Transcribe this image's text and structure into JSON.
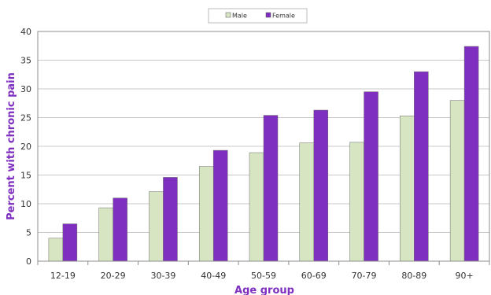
{
  "chart_data": {
    "type": "bar",
    "categories": [
      "12-19",
      "20-29",
      "30-39",
      "40-49",
      "50-59",
      "60-69",
      "70-79",
      "80-89",
      "90+"
    ],
    "series": [
      {
        "name": "Male",
        "color": "#d7e5c2",
        "values": [
          4,
          9.3,
          12.1,
          16.5,
          18.9,
          20.6,
          20.7,
          25.3,
          28
        ]
      },
      {
        "name": "Female",
        "color": "#7e2fbf",
        "values": [
          6.5,
          11,
          14.6,
          19.3,
          25.4,
          26.3,
          29.5,
          33,
          37.4
        ]
      }
    ],
    "xlabel": "Age group",
    "ylabel": "Percent with chronic pain",
    "ylim": [
      0,
      40
    ],
    "yticks": [
      0,
      5,
      10,
      15,
      20,
      25,
      30,
      35,
      40
    ],
    "grid": true,
    "legend_position": "top-center",
    "axis_title_color": "#7e2fbf"
  }
}
